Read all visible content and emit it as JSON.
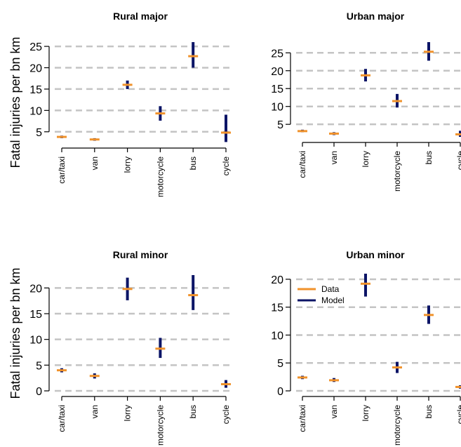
{
  "figure": {
    "ylabel": "Fatal injuries per bn km"
  },
  "chart_data": [
    {
      "type": "scatter",
      "title": "Rural major",
      "categories": [
        "car/taxi",
        "van",
        "lorry",
        "motorcycle",
        "bus",
        "cycle"
      ],
      "ylabel": "Fatal injuries per bn km",
      "ylim": [
        2.5,
        26
      ],
      "yticks": [
        5,
        10,
        15,
        20,
        25
      ],
      "grid": "horizontal dashed",
      "series": [
        {
          "name": "Data",
          "color": "#f0922b",
          "values": [
            3.8,
            3.2,
            16.0,
            9.3,
            22.7,
            4.8
          ]
        },
        {
          "name": "Model",
          "color": "#0b1466",
          "low": [
            3.5,
            2.9,
            15.0,
            7.6,
            20.0,
            2.6
          ],
          "high": [
            4.1,
            3.5,
            17.0,
            11.0,
            26.0,
            9.0
          ]
        }
      ]
    },
    {
      "type": "scatter",
      "title": "Urban major",
      "categories": [
        "car/taxi",
        "van",
        "lorry",
        "motorcycle",
        "bus",
        "cycle"
      ],
      "ylabel": "",
      "ylim": [
        1.5,
        28
      ],
      "yticks": [
        5,
        10,
        15,
        20,
        25
      ],
      "grid": "horizontal dashed",
      "series": [
        {
          "name": "Data",
          "color": "#f0922b",
          "values": [
            3.1,
            2.4,
            18.7,
            11.5,
            25.3,
            2.2
          ]
        },
        {
          "name": "Model",
          "color": "#0b1466",
          "low": [
            2.8,
            2.0,
            17.0,
            9.7,
            22.8,
            1.5
          ],
          "high": [
            3.5,
            2.8,
            20.5,
            13.5,
            28.0,
            3.2
          ]
        }
      ]
    },
    {
      "type": "scatter",
      "title": "Rural minor",
      "categories": [
        "car/taxi",
        "van",
        "lorry",
        "motorcycle",
        "bus",
        "cycle"
      ],
      "ylabel": "Fatal injuries per bn km",
      "ylim": [
        0,
        22.5
      ],
      "yticks": [
        0,
        5,
        10,
        15,
        20
      ],
      "grid": "horizontal dashed",
      "series": [
        {
          "name": "Data",
          "color": "#f0922b",
          "values": [
            4.0,
            2.9,
            19.8,
            8.2,
            18.6,
            1.3
          ]
        },
        {
          "name": "Model",
          "color": "#0b1466",
          "low": [
            3.6,
            2.4,
            17.6,
            6.4,
            15.7,
            0.6
          ],
          "high": [
            4.4,
            3.4,
            22.0,
            10.3,
            22.5,
            2.1
          ]
        }
      ]
    },
    {
      "type": "scatter",
      "title": "Urban minor",
      "categories": [
        "car/taxi",
        "van",
        "lorry",
        "motorcycle",
        "bus",
        "cycle"
      ],
      "ylabel": "",
      "ylim": [
        0,
        21
      ],
      "yticks": [
        0,
        5,
        10,
        15,
        20
      ],
      "grid": "horizontal dashed",
      "legend": {
        "position": "top-left",
        "entries": [
          "Data",
          "Model"
        ]
      },
      "series": [
        {
          "name": "Data",
          "color": "#f0922b",
          "values": [
            2.4,
            1.9,
            19.2,
            4.2,
            13.6,
            0.7
          ]
        },
        {
          "name": "Model",
          "color": "#0b1466",
          "low": [
            2.1,
            1.6,
            16.9,
            3.2,
            12.0,
            0.4
          ],
          "high": [
            2.7,
            2.3,
            21.0,
            5.2,
            15.3,
            1.0
          ]
        }
      ]
    }
  ]
}
